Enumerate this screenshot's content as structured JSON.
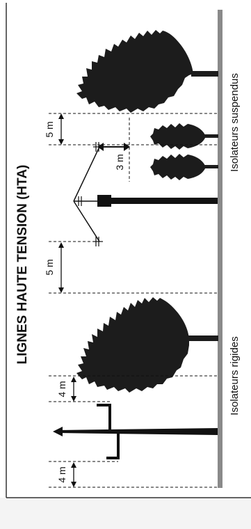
{
  "diagram": {
    "title": "LIGNES HAUTE TENSION (HTA)",
    "sections": {
      "rigid": {
        "label": "Isolateurs rigides"
      },
      "suspended": {
        "label": "Isolateurs suspendus"
      }
    },
    "dimensions": {
      "rigid_left": "4 m",
      "rigid_right": "4 m",
      "suspended_left": "5 m",
      "suspended_right": "5 m",
      "suspended_vertical": "3 m"
    },
    "colors": {
      "ink": "#111111",
      "ground": "#8a8a8a",
      "tree": "#1c1c1c",
      "background": "#ffffff"
    }
  }
}
